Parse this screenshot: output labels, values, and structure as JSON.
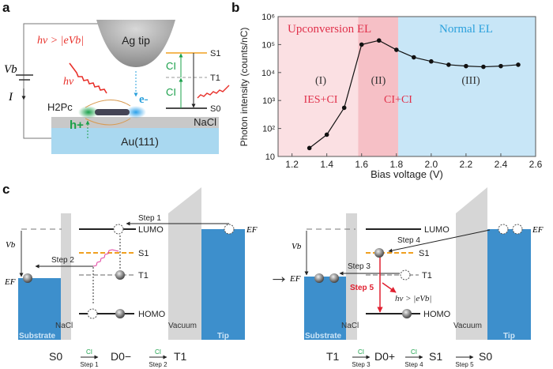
{
  "panels": {
    "a": "a",
    "b": "b",
    "c": "c"
  },
  "panel_a": {
    "tip_label": "Ag tip",
    "nacl_label": "NaCl",
    "au_label": "Au(111)",
    "molecule_label": "H2Pc",
    "hole_label": "h+",
    "electron_label": "e-",
    "photon_condition": "hν > |eVb|",
    "photon_label": "hν",
    "bias_label": "Vb",
    "current_label": "I",
    "levels": [
      "S1",
      "T1",
      "S0"
    ],
    "ci_labels": [
      "CI",
      "CI"
    ],
    "colors": {
      "nacl": "#c8c8c8",
      "au": "#a9d8f0",
      "photon": "#e8302a",
      "ci": "#1aa04a",
      "s1": "#f0a020"
    }
  },
  "chart_data": {
    "type": "line",
    "xlabel": "Bias voltage (V)",
    "ylabel": "Photon intensity (counts/nC)",
    "xlim": [
      1.12,
      2.6
    ],
    "ylim": [
      10,
      1000000
    ],
    "yscale": "log",
    "xticks": [
      "1.2",
      "1.4",
      "1.6",
      "1.8",
      "2.0",
      "2.2",
      "2.4",
      "2.6"
    ],
    "xtick_values": [
      1.2,
      1.4,
      1.6,
      1.8,
      2.0,
      2.2,
      2.4,
      2.6
    ],
    "yticks": [
      "10",
      "10²",
      "10³",
      "10⁴",
      "10⁵",
      "10⁶"
    ],
    "ytick_values": [
      10,
      100,
      1000,
      10000,
      100000,
      1000000
    ],
    "x": [
      1.3,
      1.4,
      1.5,
      1.6,
      1.7,
      1.8,
      1.9,
      2.0,
      2.1,
      2.2,
      2.3,
      2.4,
      2.5
    ],
    "y": [
      20,
      60,
      550,
      100000,
      140000,
      65000,
      35000,
      25000,
      19000,
      17000,
      16000,
      17000,
      19000
    ],
    "regions": [
      {
        "from": 1.12,
        "to": 1.58,
        "color": "#fbe0e3",
        "roman": "(I)",
        "mechanism": "IES+CI"
      },
      {
        "from": 1.58,
        "to": 1.81,
        "color": "#f6c0c6",
        "roman": "(II)",
        "mechanism": "CI+CI"
      },
      {
        "from": 1.81,
        "to": 2.6,
        "color": "#c8e6f7",
        "roman": "(III)",
        "mechanism": ""
      }
    ],
    "annotations": {
      "upconversion": "Upconversion EL",
      "normal": "Normal EL"
    },
    "colors": {
      "upconversion": "#e0304a",
      "normal": "#2aa0dc",
      "line": "#111111"
    },
    "grid": false
  },
  "panel_c": {
    "substrate": "Substrate",
    "nacl": "NaCl",
    "vacuum": "Vacuum",
    "tip": "Tip",
    "lumo": "LUMO",
    "homo": "HOMO",
    "s1": "S1",
    "t1": "T1",
    "vb": "Vb",
    "ef": "EF",
    "left": {
      "step1": "Step 1",
      "step2": "Step 2",
      "eq": {
        "start": "S0",
        "mid": "D0−",
        "end": "T1",
        "ci": "CI",
        "s1": "Step 1",
        "s2": "Step 2"
      }
    },
    "right": {
      "step3": "Step 3",
      "step4": "Step 4",
      "step5": "Step 5",
      "photon": "hν > |eVb|",
      "eq": {
        "start": "T1",
        "mid": "D0+",
        "s1st": "S1",
        "end": "S0",
        "ci": "CI",
        "s3": "Step 3",
        "s4": "Step 4",
        "s5": "Step 5"
      }
    },
    "transition_arrow": "→",
    "colors": {
      "blue": "#3d8fcc",
      "gray": "#d6d6d6",
      "s1": "#f0a020",
      "step5": "#e02030",
      "wavy": "#e040a0"
    }
  }
}
